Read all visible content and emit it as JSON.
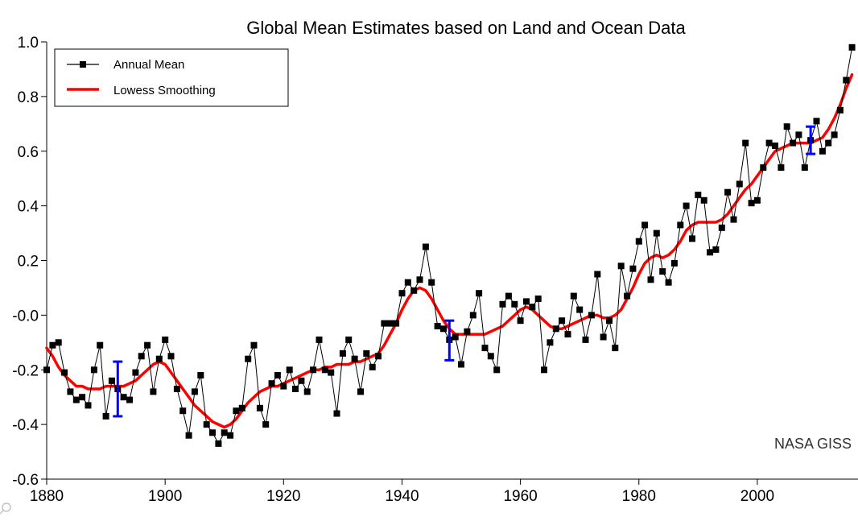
{
  "chart_data": {
    "type": "line",
    "title": "Global Mean Estimates based on Land and Ocean Data",
    "xlabel": "",
    "ylabel": "",
    "credit": "NASA GISS",
    "xlim": [
      1880,
      2017
    ],
    "ylim": [
      -0.6,
      1.0
    ],
    "grid": false,
    "legend_position": "top-left",
    "x_ticks": [
      1880,
      1900,
      1920,
      1940,
      1960,
      1980,
      2000
    ],
    "x_tick_labels": [
      "1880",
      "1900",
      "1920",
      "1940",
      "1960",
      "1980",
      "2000"
    ],
    "y_ticks": [
      -0.6,
      -0.4,
      -0.2,
      0.0,
      0.2,
      0.4,
      0.6,
      0.8,
      1.0
    ],
    "y_tick_labels": [
      "-0.6",
      "-0.4",
      "-0.2",
      "-0.0",
      "0.2",
      "0.4",
      "0.6",
      "0.8",
      "1.0"
    ],
    "x": [
      1880,
      1881,
      1882,
      1883,
      1884,
      1885,
      1886,
      1887,
      1888,
      1889,
      1890,
      1891,
      1892,
      1893,
      1894,
      1895,
      1896,
      1897,
      1898,
      1899,
      1900,
      1901,
      1902,
      1903,
      1904,
      1905,
      1906,
      1907,
      1908,
      1909,
      1910,
      1911,
      1912,
      1913,
      1914,
      1915,
      1916,
      1917,
      1918,
      1919,
      1920,
      1921,
      1922,
      1923,
      1924,
      1925,
      1926,
      1927,
      1928,
      1929,
      1930,
      1931,
      1932,
      1933,
      1934,
      1935,
      1936,
      1937,
      1938,
      1939,
      1940,
      1941,
      1942,
      1943,
      1944,
      1945,
      1946,
      1947,
      1948,
      1949,
      1950,
      1951,
      1952,
      1953,
      1954,
      1955,
      1956,
      1957,
      1958,
      1959,
      1960,
      1961,
      1962,
      1963,
      1964,
      1965,
      1966,
      1967,
      1968,
      1969,
      1970,
      1971,
      1972,
      1973,
      1974,
      1975,
      1976,
      1977,
      1978,
      1979,
      1980,
      1981,
      1982,
      1983,
      1984,
      1985,
      1986,
      1987,
      1988,
      1989,
      1990,
      1991,
      1992,
      1993,
      1994,
      1995,
      1996,
      1997,
      1998,
      1999,
      2000,
      2001,
      2002,
      2003,
      2004,
      2005,
      2006,
      2007,
      2008,
      2009,
      2010,
      2011,
      2012,
      2013,
      2014,
      2015,
      2016
    ],
    "series": [
      {
        "name": "Annual Mean",
        "color": "#000000",
        "marker": "square",
        "values": [
          -0.2,
          -0.11,
          -0.1,
          -0.21,
          -0.28,
          -0.31,
          -0.3,
          -0.33,
          -0.2,
          -0.11,
          -0.37,
          -0.24,
          -0.27,
          -0.3,
          -0.31,
          -0.21,
          -0.15,
          -0.11,
          -0.28,
          -0.16,
          -0.09,
          -0.15,
          -0.27,
          -0.35,
          -0.44,
          -0.28,
          -0.22,
          -0.4,
          -0.43,
          -0.47,
          -0.43,
          -0.44,
          -0.35,
          -0.34,
          -0.16,
          -0.11,
          -0.34,
          -0.4,
          -0.25,
          -0.22,
          -0.26,
          -0.2,
          -0.27,
          -0.24,
          -0.28,
          -0.2,
          -0.09,
          -0.2,
          -0.21,
          -0.36,
          -0.14,
          -0.09,
          -0.16,
          -0.28,
          -0.14,
          -0.19,
          -0.15,
          -0.03,
          -0.03,
          -0.03,
          0.08,
          0.12,
          0.09,
          0.13,
          0.25,
          0.12,
          -0.04,
          -0.05,
          -0.09,
          -0.08,
          -0.18,
          -0.06,
          0.0,
          0.08,
          -0.12,
          -0.15,
          -0.2,
          0.04,
          0.07,
          0.04,
          -0.02,
          0.05,
          0.03,
          0.06,
          -0.2,
          -0.1,
          -0.05,
          -0.02,
          -0.07,
          0.07,
          0.02,
          -0.09,
          0.0,
          0.15,
          -0.08,
          -0.02,
          -0.12,
          0.18,
          0.07,
          0.17,
          0.27,
          0.33,
          0.13,
          0.3,
          0.16,
          0.12,
          0.19,
          0.33,
          0.4,
          0.28,
          0.44,
          0.42,
          0.23,
          0.24,
          0.32,
          0.45,
          0.35,
          0.48,
          0.63,
          0.41,
          0.42,
          0.54,
          0.63,
          0.62,
          0.54,
          0.69,
          0.63,
          0.66,
          0.54,
          0.64,
          0.71,
          0.6,
          0.63,
          0.66,
          0.75,
          0.86,
          0.98
        ]
      },
      {
        "name": "Lowess Smoothing",
        "color": "#ff0000",
        "values": [
          -0.12,
          -0.15,
          -0.19,
          -0.22,
          -0.24,
          -0.26,
          -0.26,
          -0.27,
          -0.27,
          -0.27,
          -0.26,
          -0.26,
          -0.26,
          -0.26,
          -0.25,
          -0.24,
          -0.22,
          -0.2,
          -0.18,
          -0.17,
          -0.18,
          -0.21,
          -0.24,
          -0.27,
          -0.3,
          -0.33,
          -0.35,
          -0.37,
          -0.39,
          -0.4,
          -0.41,
          -0.4,
          -0.38,
          -0.35,
          -0.32,
          -0.3,
          -0.28,
          -0.27,
          -0.26,
          -0.26,
          -0.25,
          -0.24,
          -0.23,
          -0.22,
          -0.21,
          -0.2,
          -0.2,
          -0.19,
          -0.19,
          -0.18,
          -0.18,
          -0.18,
          -0.17,
          -0.17,
          -0.16,
          -0.15,
          -0.14,
          -0.11,
          -0.07,
          -0.03,
          0.02,
          0.06,
          0.09,
          0.1,
          0.09,
          0.06,
          0.02,
          -0.02,
          -0.05,
          -0.07,
          -0.07,
          -0.07,
          -0.07,
          -0.07,
          -0.07,
          -0.06,
          -0.05,
          -0.04,
          -0.02,
          0.0,
          0.02,
          0.03,
          0.02,
          0.0,
          -0.02,
          -0.04,
          -0.05,
          -0.05,
          -0.04,
          -0.03,
          -0.02,
          -0.01,
          0.0,
          0.0,
          -0.01,
          -0.01,
          0.0,
          0.02,
          0.06,
          0.1,
          0.15,
          0.19,
          0.21,
          0.22,
          0.21,
          0.22,
          0.24,
          0.27,
          0.31,
          0.33,
          0.34,
          0.34,
          0.34,
          0.34,
          0.35,
          0.37,
          0.4,
          0.43,
          0.46,
          0.48,
          0.51,
          0.54,
          0.57,
          0.6,
          0.61,
          0.62,
          0.63,
          0.63,
          0.63,
          0.63,
          0.64,
          0.65,
          0.68,
          0.72,
          0.77,
          0.83,
          0.88
        ]
      }
    ],
    "error_bars": [
      {
        "x": 1892,
        "low": -0.37,
        "high": -0.17,
        "color": "#0000ff"
      },
      {
        "x": 1948,
        "low": -0.165,
        "high": -0.02,
        "color": "#0000ff"
      },
      {
        "x": 2009,
        "low": 0.59,
        "high": 0.69,
        "color": "#0000ff"
      }
    ]
  }
}
